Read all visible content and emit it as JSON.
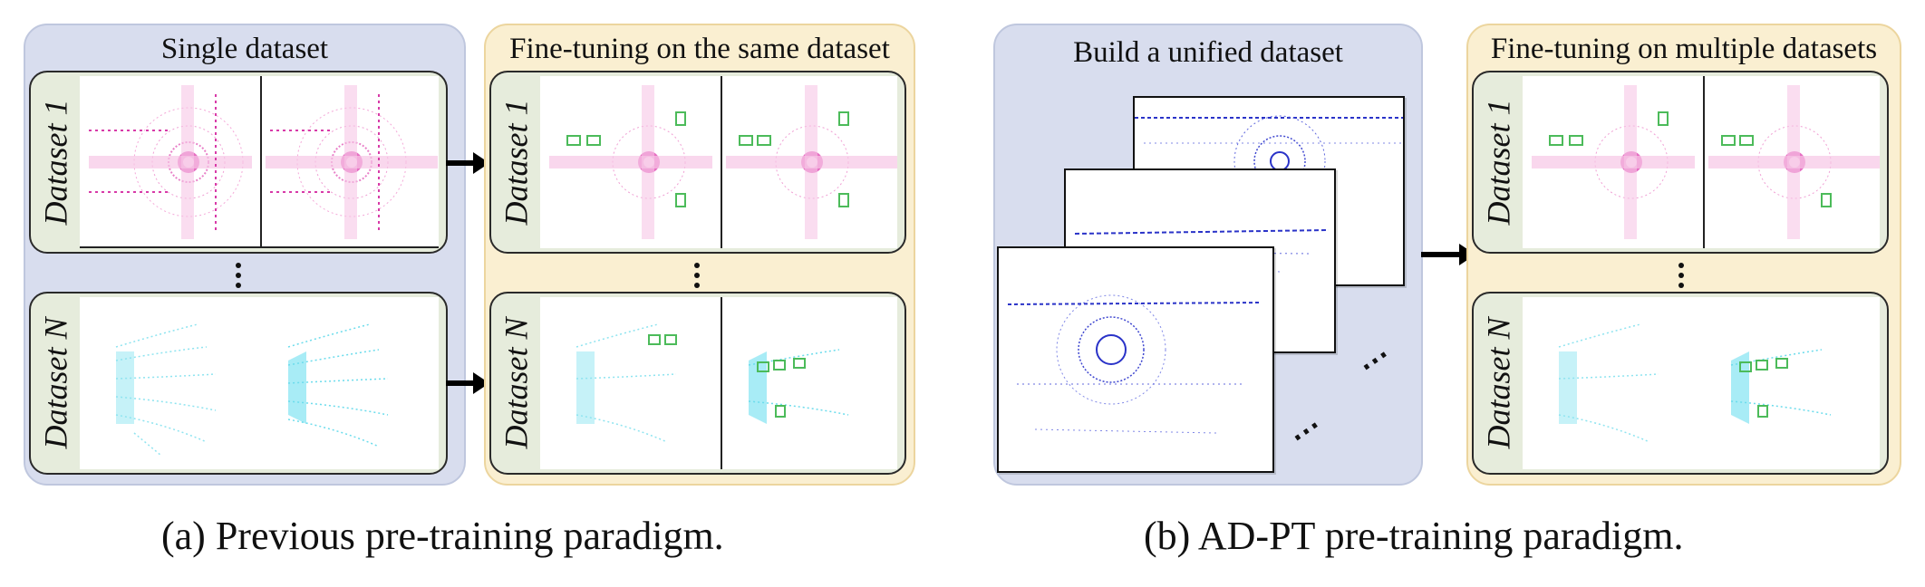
{
  "left_panel": {
    "single_title": "Single dataset",
    "finetune_title": "Fine-tuning on the same dataset",
    "row1_label": "Dataset 1",
    "rowN_label": "Dataset N"
  },
  "right_panel": {
    "build_title": "Build a unified dataset",
    "finetune_title": "Fine-tuning on multiple datasets",
    "row1_label": "Dataset 1",
    "rowN_label": "Dataset N"
  },
  "captions": {
    "a": "(a) Previous pre-training paradigm.",
    "b": "(b) AD-PT pre-training paradigm."
  },
  "colors": {
    "blue_panel": "#d8ddee",
    "yellow_panel": "#faefd1",
    "label_bg": "#e6ecdc",
    "magenta_points": "#e040b0",
    "cyan_points": "#5fd8ea",
    "blue_points": "#2a33c8",
    "box_green": "#4cbb5a"
  }
}
